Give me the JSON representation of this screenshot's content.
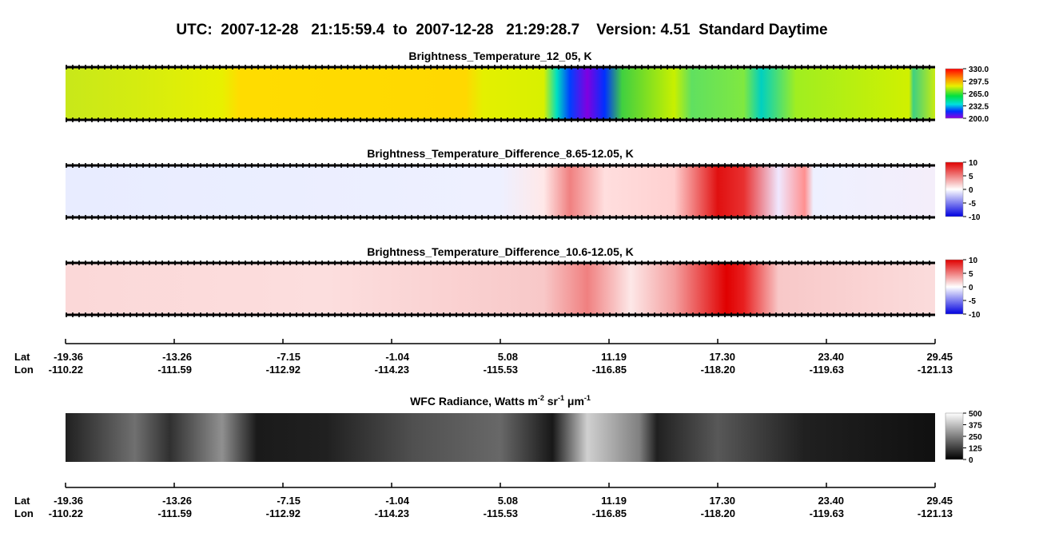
{
  "header": {
    "title": "UTC:  2007-12-28   21:15:59.4  to  2007-12-28   21:29:28.7    Version: 4.51  Standard Daytime"
  },
  "panels": [
    {
      "title": "Brightness_Temperature_12_05, K",
      "clim": [
        200,
        330
      ],
      "ticks": [
        {
          "value": 330,
          "label": "330.0"
        },
        {
          "value": 297.5,
          "label": "297.5"
        },
        {
          "value": 265,
          "label": "265.0"
        },
        {
          "value": 232.5,
          "label": "232.5"
        },
        {
          "value": 200,
          "label": "200.0"
        }
      ]
    },
    {
      "title": "Brightness_Temperature_Difference_8.65-12.05, K",
      "clim": [
        -10,
        10
      ],
      "ticks": [
        10,
        5,
        0,
        -5,
        -10
      ]
    },
    {
      "title": "Brightness_Temperature_Difference_10.6-12.05, K",
      "clim": [
        -10,
        10
      ],
      "ticks": [
        10,
        5,
        0,
        -5,
        -10
      ]
    },
    {
      "title_parts": [
        "WFC Radiance, Watts m",
        "-2",
        " sr",
        "-1",
        " μm",
        "-1"
      ],
      "clim": [
        0,
        500
      ],
      "ticks": [
        500,
        375,
        250,
        125,
        0
      ]
    }
  ],
  "axes": [
    {
      "lat_label": "Lat",
      "lon_label": "Lon",
      "lat": [
        "-19.36",
        "-13.26",
        "-7.15",
        "-1.04",
        "5.08",
        "11.19",
        "17.30",
        "23.40",
        "29.45"
      ],
      "lon": [
        "-110.22",
        "-111.59",
        "-112.92",
        "-114.23",
        "-115.53",
        "-116.85",
        "-118.20",
        "-119.63",
        "-121.13"
      ]
    },
    {
      "lat_label": "Lat",
      "lon_label": "Lon",
      "lat": [
        "-19.36",
        "-13.26",
        "-7.15",
        "-1.04",
        "5.08",
        "11.19",
        "17.30",
        "23.40",
        "29.45"
      ],
      "lon": [
        "-110.22",
        "-111.59",
        "-112.92",
        "-114.23",
        "-115.53",
        "-116.85",
        "-118.20",
        "-119.63",
        "-121.13"
      ]
    }
  ]
}
